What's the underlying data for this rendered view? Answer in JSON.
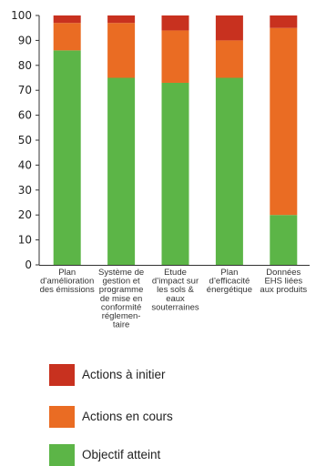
{
  "chart_data": {
    "type": "bar",
    "stacked": true,
    "ylim": [
      0,
      100
    ],
    "yticks": [
      0,
      10,
      20,
      30,
      40,
      50,
      60,
      70,
      80,
      90,
      100
    ],
    "grid": false,
    "categories": [
      [
        "Plan",
        "d’amélioration",
        "des émissions"
      ],
      [
        "Système de",
        "gestion et",
        "programme",
        "de mise en",
        "conformité",
        "réglemen-",
        "taire"
      ],
      [
        "Etude",
        "d’impact sur",
        "les sols &",
        "eaux",
        "souterraines"
      ],
      [
        "Plan",
        "d’efficacité",
        "énergétique"
      ],
      [
        "Données",
        "EHS liées",
        "aux produits"
      ]
    ],
    "series": [
      {
        "name": "Objectif atteint",
        "color": "#5cb547",
        "values": [
          86,
          75,
          73,
          75,
          20
        ]
      },
      {
        "name": "Actions en cours",
        "color": "#ea6c23",
        "values": [
          11,
          22,
          21,
          15,
          75
        ]
      },
      {
        "name": "Actions à initier",
        "color": "#c8311f",
        "values": [
          3,
          3,
          6,
          10,
          5
        ]
      }
    ],
    "legend": [
      {
        "label": "Actions à initier",
        "color": "#c8311f"
      },
      {
        "label": "Actions en cours",
        "color": "#ea6c23"
      },
      {
        "label": "Objectif atteint",
        "color": "#5cb547"
      }
    ]
  }
}
